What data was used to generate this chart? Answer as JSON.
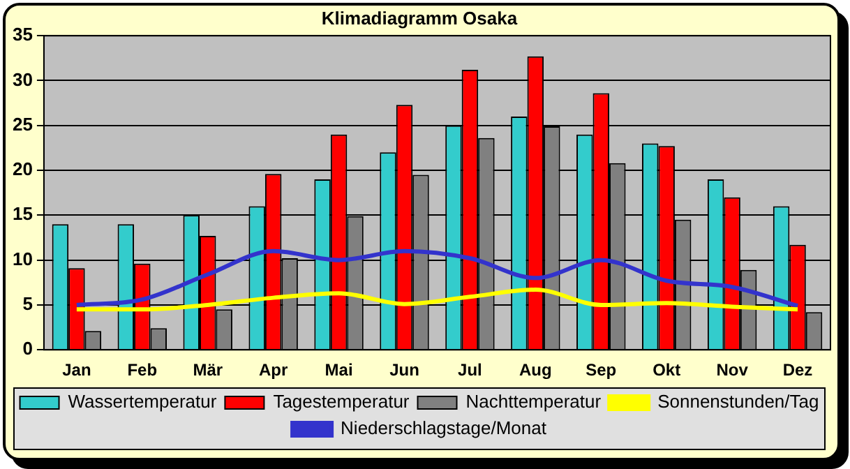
{
  "chart_data": {
    "type": "bar",
    "title": "Klimadiagramm Osaka",
    "categories": [
      "Jan",
      "Feb",
      "Mär",
      "Apr",
      "Mai",
      "Jun",
      "Jul",
      "Aug",
      "Sep",
      "Okt",
      "Nov",
      "Dez"
    ],
    "series": [
      {
        "name": "Wassertemperatur",
        "color": "#33cccc",
        "values": [
          14,
          14,
          15,
          16,
          19,
          22,
          25,
          26,
          24,
          23,
          19,
          16
        ]
      },
      {
        "name": "Tagestemperatur",
        "color": "#ff0000",
        "values": [
          9.1,
          9.6,
          12.7,
          19.6,
          24,
          27.3,
          31.2,
          32.7,
          28.6,
          22.7,
          17,
          11.7
        ]
      },
      {
        "name": "Nachttemperatur",
        "color": "#808080",
        "values": [
          2.1,
          2.4,
          4.5,
          10.2,
          14.9,
          19.5,
          23.6,
          24.9,
          20.8,
          14.5,
          8.9,
          4.2
        ]
      },
      {
        "name": "Sonnenstunden/Tag",
        "type": "line",
        "color": "#ffff00",
        "values": [
          4.5,
          4.5,
          5.0,
          5.8,
          6.3,
          5.1,
          5.9,
          6.7,
          5.0,
          5.2,
          4.8,
          4.5
        ]
      },
      {
        "name": "Niederschlagstage/Monat",
        "type": "line",
        "color": "#3333cc",
        "values": [
          5,
          5.6,
          8.4,
          11,
          10,
          11,
          10.2,
          8,
          10,
          7.7,
          7,
          4.9
        ]
      }
    ],
    "ylim": [
      0,
      35
    ],
    "yticks": [
      0,
      5,
      10,
      15,
      20,
      25,
      30,
      35
    ],
    "grid": "y",
    "legend": "bottom",
    "marker": "none"
  }
}
